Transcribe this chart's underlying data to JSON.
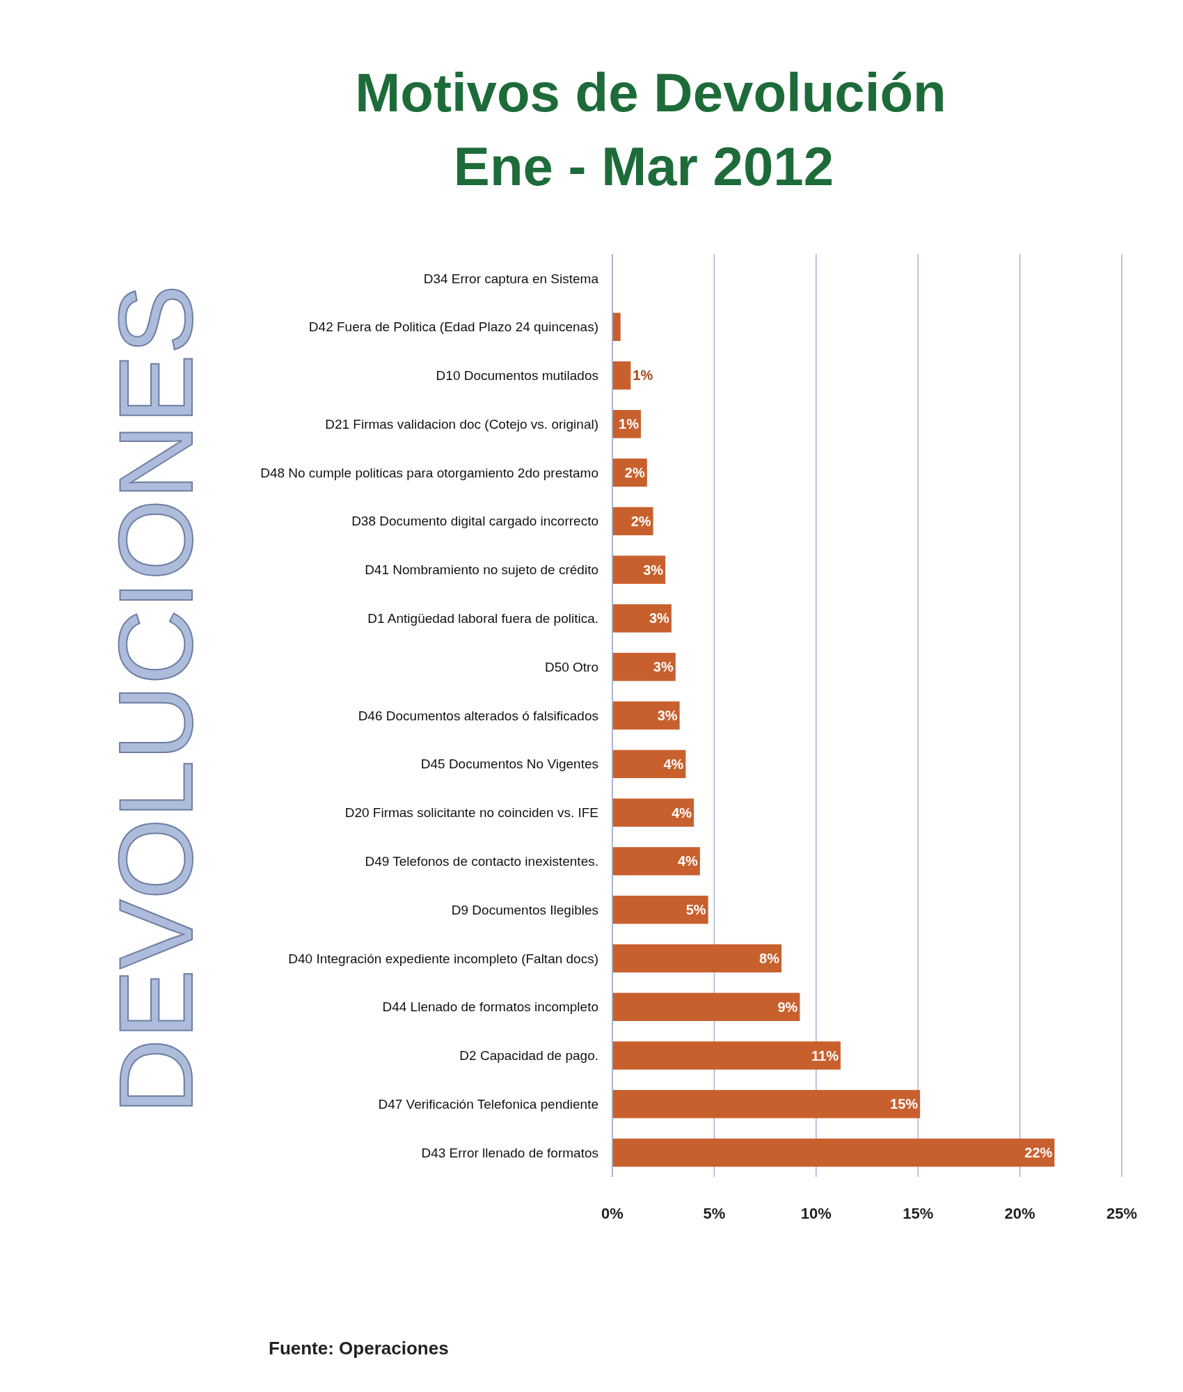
{
  "chart_data": {
    "type": "bar",
    "orientation": "horizontal",
    "title": "Motivos de Devolución",
    "subtitle": "Ene -  Mar 2012",
    "ylabel": "DEVOLUCIONES",
    "categories": [
      "D34  Error captura en Sistema",
      "D42  Fuera de Politica (Edad Plazo 24 quincenas)",
      "D10  Documentos mutilados",
      "D21  Firmas validacion doc (Cotejo vs. original)",
      "D48 No cumple politicas para otorgamiento 2do prestamo",
      "D38 Documento digital cargado incorrecto",
      "D41  Nombramiento no sujeto de crédito",
      "D1  Antigüedad laboral fuera de politica.",
      "D50  Otro",
      "D46  Documentos alterados ó falsificados",
      "D45  Documentos No Vigentes",
      "D20  Firmas solicitante no coinciden vs. IFE",
      "D49 Telefonos de contacto inexistentes.",
      "D9  Documentos Ilegibles",
      "D40  Integración expediente incompleto (Faltan docs)",
      "D44  Llenado de formatos incompleto",
      "D2  Capacidad de pago.",
      "D47  Verificación Telefonica pendiente",
      "D43  Error llenado de formatos"
    ],
    "values": [
      0,
      0.4,
      0.9,
      1.4,
      1.7,
      2.0,
      2.6,
      2.9,
      3.1,
      3.3,
      3.6,
      4.0,
      4.3,
      4.7,
      8.3,
      9.2,
      11.2,
      15.1,
      21.7
    ],
    "value_labels": [
      null,
      null,
      "1%",
      "1%",
      "2%",
      "2%",
      "3%",
      "3%",
      "3%",
      "3%",
      "4%",
      "4%",
      "4%",
      "5%",
      "8%",
      "9%",
      "11%",
      "15%",
      "22%"
    ],
    "color": "#c8602e",
    "xlim": [
      0,
      25
    ],
    "xticks": [
      {
        "value": 0,
        "label": "0%"
      },
      {
        "value": 5,
        "label": "5%"
      },
      {
        "value": 10,
        "label": "10%"
      },
      {
        "value": 15,
        "label": "15%"
      },
      {
        "value": 20,
        "label": "20%"
      },
      {
        "value": 25,
        "label": "25%"
      }
    ],
    "grid": "x",
    "annotations": [
      "Fuente: Operaciones"
    ]
  }
}
